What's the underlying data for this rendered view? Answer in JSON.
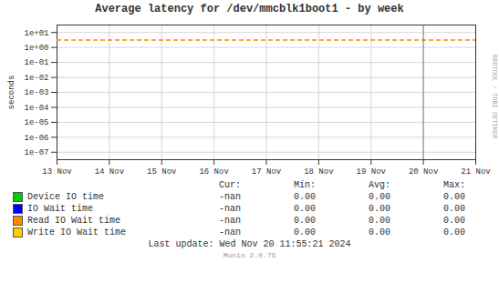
{
  "chart_data": {
    "type": "line",
    "title": "Average latency for /dev/mmcblk1boot1 - by week",
    "ylabel": "seconds",
    "log": "y",
    "grid": true,
    "xlim": [
      1731369600,
      1732060800
    ],
    "xticks": [
      {
        "value": 1731369600,
        "label": "13 Nov"
      },
      {
        "value": 1731456000,
        "label": "14 Nov"
      },
      {
        "value": 1731542400,
        "label": "15 Nov"
      },
      {
        "value": 1731628800,
        "label": "16 Nov"
      },
      {
        "value": 1731715200,
        "label": "17 Nov"
      },
      {
        "value": 1731801600,
        "label": "18 Nov"
      },
      {
        "value": 1731888000,
        "label": "19 Nov"
      },
      {
        "value": 1731974400,
        "label": "20 Nov"
      },
      {
        "value": 1732060800,
        "label": "21 Nov"
      }
    ],
    "ylim": [
      3.16e-08,
      31.6
    ],
    "yticks": [
      {
        "value": 1e-07,
        "label": "1e-07"
      },
      {
        "value": 1e-06,
        "label": "1e-06"
      },
      {
        "value": 1e-05,
        "label": "1e-05"
      },
      {
        "value": 0.0001,
        "label": "1e-04"
      },
      {
        "value": 0.001,
        "label": "1e-03"
      },
      {
        "value": 0.01,
        "label": "1e-02"
      },
      {
        "value": 0.1,
        "label": "1e-01"
      },
      {
        "value": 1,
        "label": "1e+00"
      },
      {
        "value": 10,
        "label": "1e+01"
      }
    ],
    "reference_lines": [
      {
        "value": 3.16,
        "color": "#ff8800",
        "line_style": "dashed"
      }
    ],
    "time_marker": 1731974400,
    "stats_header": [
      "Cur:",
      "Min:",
      "Avg:",
      "Max:"
    ],
    "series": [
      {
        "name": "Device IO time",
        "color": "#00cc00",
        "values": [],
        "stats": [
          "-nan",
          "0.00",
          "0.00",
          "0.00"
        ]
      },
      {
        "name": "IO Wait time",
        "color": "#0000ff",
        "values": [],
        "stats": [
          "-nan",
          "0.00",
          "0.00",
          "0.00"
        ]
      },
      {
        "name": "Read IO Wait time",
        "color": "#ff8800",
        "values": [],
        "stats": [
          "-nan",
          "0.00",
          "0.00",
          "0.00"
        ]
      },
      {
        "name": "Write IO Wait time",
        "color": "#ffcc00",
        "values": [],
        "stats": [
          "-nan",
          "0.00",
          "0.00",
          "0.00"
        ]
      }
    ],
    "footer": "Last update: Wed Nov 20 11:55:21 2024",
    "watermark": "Munin 2.0.76",
    "side_text": "RRDTOOL / TOBI OETIKER"
  }
}
